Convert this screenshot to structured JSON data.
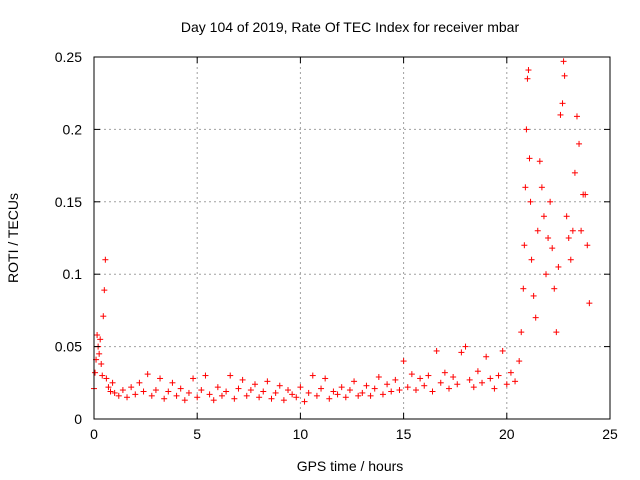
{
  "chart_data": {
    "type": "scatter",
    "title": "Day 104 of 2019, Rate Of TEC Index for receiver mbar",
    "xlabel": "GPS time / hours",
    "ylabel": "ROTI / TECUs",
    "xlim": [
      0,
      25
    ],
    "ylim": [
      0,
      0.25
    ],
    "x_ticks": [
      0,
      5,
      10,
      15,
      20,
      25
    ],
    "y_ticks": [
      0,
      0.05,
      0.1,
      0.15,
      0.2,
      0.25
    ],
    "x_tick_labels": [
      "0",
      "5",
      "10",
      "15",
      "20",
      "25"
    ],
    "y_tick_labels": [
      "0",
      "0.05",
      "0.1",
      "0.15",
      "0.2",
      "0.25"
    ],
    "grid": true,
    "legend": "none",
    "marker": "plus",
    "series_color": "#ff0000",
    "series": [
      {
        "points": [
          [
            0.0,
            0.021
          ],
          [
            0.05,
            0.032
          ],
          [
            0.1,
            0.041
          ],
          [
            0.15,
            0.058
          ],
          [
            0.2,
            0.05
          ],
          [
            0.25,
            0.045
          ],
          [
            0.3,
            0.055
          ],
          [
            0.35,
            0.038
          ],
          [
            0.4,
            0.03
          ],
          [
            0.45,
            0.071
          ],
          [
            0.5,
            0.089
          ],
          [
            0.55,
            0.11
          ],
          [
            0.6,
            0.028
          ],
          [
            0.7,
            0.022
          ],
          [
            0.8,
            0.019
          ],
          [
            0.9,
            0.025
          ],
          [
            1.0,
            0.018
          ],
          [
            1.2,
            0.016
          ],
          [
            1.4,
            0.02
          ],
          [
            1.6,
            0.015
          ],
          [
            1.8,
            0.022
          ],
          [
            2.0,
            0.017
          ],
          [
            2.2,
            0.025
          ],
          [
            2.4,
            0.019
          ],
          [
            2.6,
            0.031
          ],
          [
            2.8,
            0.016
          ],
          [
            3.0,
            0.02
          ],
          [
            3.2,
            0.028
          ],
          [
            3.4,
            0.014
          ],
          [
            3.6,
            0.019
          ],
          [
            3.8,
            0.025
          ],
          [
            4.0,
            0.016
          ],
          [
            4.2,
            0.021
          ],
          [
            4.4,
            0.013
          ],
          [
            4.6,
            0.018
          ],
          [
            4.8,
            0.028
          ],
          [
            5.0,
            0.015
          ],
          [
            5.2,
            0.02
          ],
          [
            5.4,
            0.03
          ],
          [
            5.6,
            0.017
          ],
          [
            5.8,
            0.013
          ],
          [
            6.0,
            0.022
          ],
          [
            6.2,
            0.016
          ],
          [
            6.4,
            0.019
          ],
          [
            6.6,
            0.03
          ],
          [
            6.8,
            0.014
          ],
          [
            7.0,
            0.021
          ],
          [
            7.2,
            0.027
          ],
          [
            7.4,
            0.016
          ],
          [
            7.6,
            0.02
          ],
          [
            7.8,
            0.024
          ],
          [
            8.0,
            0.015
          ],
          [
            8.2,
            0.019
          ],
          [
            8.4,
            0.026
          ],
          [
            8.6,
            0.014
          ],
          [
            8.8,
            0.018
          ],
          [
            9.0,
            0.023
          ],
          [
            9.2,
            0.013
          ],
          [
            9.4,
            0.02
          ],
          [
            9.6,
            0.017
          ],
          [
            9.8,
            0.015
          ],
          [
            10.0,
            0.022
          ],
          [
            10.2,
            0.012
          ],
          [
            10.4,
            0.018
          ],
          [
            10.6,
            0.03
          ],
          [
            10.8,
            0.016
          ],
          [
            11.0,
            0.021
          ],
          [
            11.2,
            0.028
          ],
          [
            11.4,
            0.014
          ],
          [
            11.6,
            0.019
          ],
          [
            11.8,
            0.017
          ],
          [
            12.0,
            0.022
          ],
          [
            12.2,
            0.015
          ],
          [
            12.4,
            0.02
          ],
          [
            12.6,
            0.026
          ],
          [
            12.8,
            0.016
          ],
          [
            13.0,
            0.018
          ],
          [
            13.2,
            0.023
          ],
          [
            13.4,
            0.016
          ],
          [
            13.6,
            0.021
          ],
          [
            13.8,
            0.029
          ],
          [
            14.0,
            0.017
          ],
          [
            14.2,
            0.024
          ],
          [
            14.4,
            0.019
          ],
          [
            14.6,
            0.027
          ],
          [
            14.8,
            0.02
          ],
          [
            15.0,
            0.04
          ],
          [
            15.2,
            0.022
          ],
          [
            15.4,
            0.031
          ],
          [
            15.6,
            0.02
          ],
          [
            15.8,
            0.028
          ],
          [
            16.0,
            0.023
          ],
          [
            16.2,
            0.03
          ],
          [
            16.4,
            0.019
          ],
          [
            16.6,
            0.047
          ],
          [
            16.8,
            0.025
          ],
          [
            17.0,
            0.032
          ],
          [
            17.2,
            0.021
          ],
          [
            17.4,
            0.029
          ],
          [
            17.6,
            0.024
          ],
          [
            17.8,
            0.046
          ],
          [
            18.0,
            0.05
          ],
          [
            18.2,
            0.027
          ],
          [
            18.4,
            0.022
          ],
          [
            18.6,
            0.033
          ],
          [
            18.8,
            0.025
          ],
          [
            19.0,
            0.043
          ],
          [
            19.2,
            0.028
          ],
          [
            19.4,
            0.021
          ],
          [
            19.6,
            0.03
          ],
          [
            19.8,
            0.047
          ],
          [
            20.0,
            0.024
          ],
          [
            20.2,
            0.032
          ],
          [
            20.4,
            0.026
          ],
          [
            20.6,
            0.04
          ],
          [
            20.7,
            0.06
          ],
          [
            20.8,
            0.09
          ],
          [
            20.85,
            0.12
          ],
          [
            20.9,
            0.16
          ],
          [
            20.95,
            0.2
          ],
          [
            21.0,
            0.235
          ],
          [
            21.05,
            0.241
          ],
          [
            21.1,
            0.18
          ],
          [
            21.15,
            0.15
          ],
          [
            21.2,
            0.11
          ],
          [
            21.3,
            0.085
          ],
          [
            21.4,
            0.07
          ],
          [
            21.5,
            0.13
          ],
          [
            21.6,
            0.178
          ],
          [
            21.7,
            0.16
          ],
          [
            21.8,
            0.14
          ],
          [
            21.9,
            0.1
          ],
          [
            22.0,
            0.125
          ],
          [
            22.1,
            0.15
          ],
          [
            22.2,
            0.118
          ],
          [
            22.3,
            0.09
          ],
          [
            22.4,
            0.06
          ],
          [
            22.5,
            0.105
          ],
          [
            22.6,
            0.21
          ],
          [
            22.7,
            0.218
          ],
          [
            22.75,
            0.247
          ],
          [
            22.8,
            0.237
          ],
          [
            22.9,
            0.14
          ],
          [
            23.0,
            0.125
          ],
          [
            23.1,
            0.11
          ],
          [
            23.2,
            0.13
          ],
          [
            23.3,
            0.17
          ],
          [
            23.4,
            0.209
          ],
          [
            23.5,
            0.19
          ],
          [
            23.6,
            0.13
          ],
          [
            23.7,
            0.155
          ],
          [
            23.8,
            0.155
          ],
          [
            23.9,
            0.12
          ],
          [
            24.0,
            0.08
          ]
        ]
      }
    ]
  }
}
